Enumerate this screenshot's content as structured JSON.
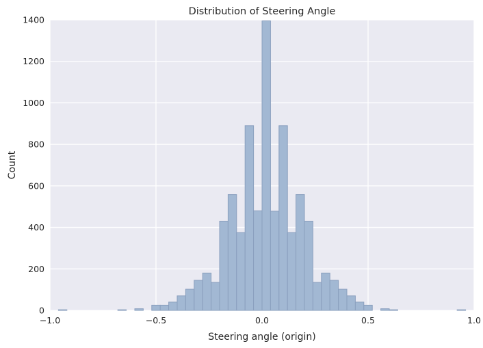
{
  "chart_data": {
    "type": "bar",
    "title": "Distribution of Steering Angle",
    "xlabel": "Steering angle (origin)",
    "ylabel": "Count",
    "xlim": [
      -1.0,
      1.0
    ],
    "ylim": [
      0,
      1400
    ],
    "xticks": [
      "−1.0",
      "−0.5",
      "0.0",
      "0.5",
      "1.0"
    ],
    "yticks": [
      "0",
      "200",
      "400",
      "600",
      "800",
      "1000",
      "1200",
      "1400"
    ],
    "grid": true,
    "legend": "none",
    "style": {
      "plot_background": "#eaeaf2",
      "bar_fill": "#a2b8d3",
      "bar_edge": "#8a9fbe",
      "grid": "#ffffff"
    },
    "bins": {
      "left": [
        -0.96,
        -0.68,
        -0.6,
        -0.52,
        -0.48,
        -0.44,
        -0.4,
        -0.36,
        -0.32,
        -0.28,
        -0.24,
        -0.2,
        -0.16,
        -0.12,
        -0.08,
        -0.04,
        0.0,
        0.04,
        0.08,
        0.12,
        0.16,
        0.2,
        0.24,
        0.28,
        0.32,
        0.36,
        0.4,
        0.44,
        0.48,
        0.56,
        0.6,
        0.92
      ],
      "width": 0.04,
      "counts": [
        3,
        3,
        8,
        25,
        25,
        40,
        70,
        102,
        145,
        180,
        135,
        430,
        558,
        375,
        890,
        480,
        1395,
        478,
        890,
        375,
        558,
        430,
        135,
        180,
        145,
        102,
        70,
        40,
        25,
        8,
        3,
        3
      ]
    }
  }
}
